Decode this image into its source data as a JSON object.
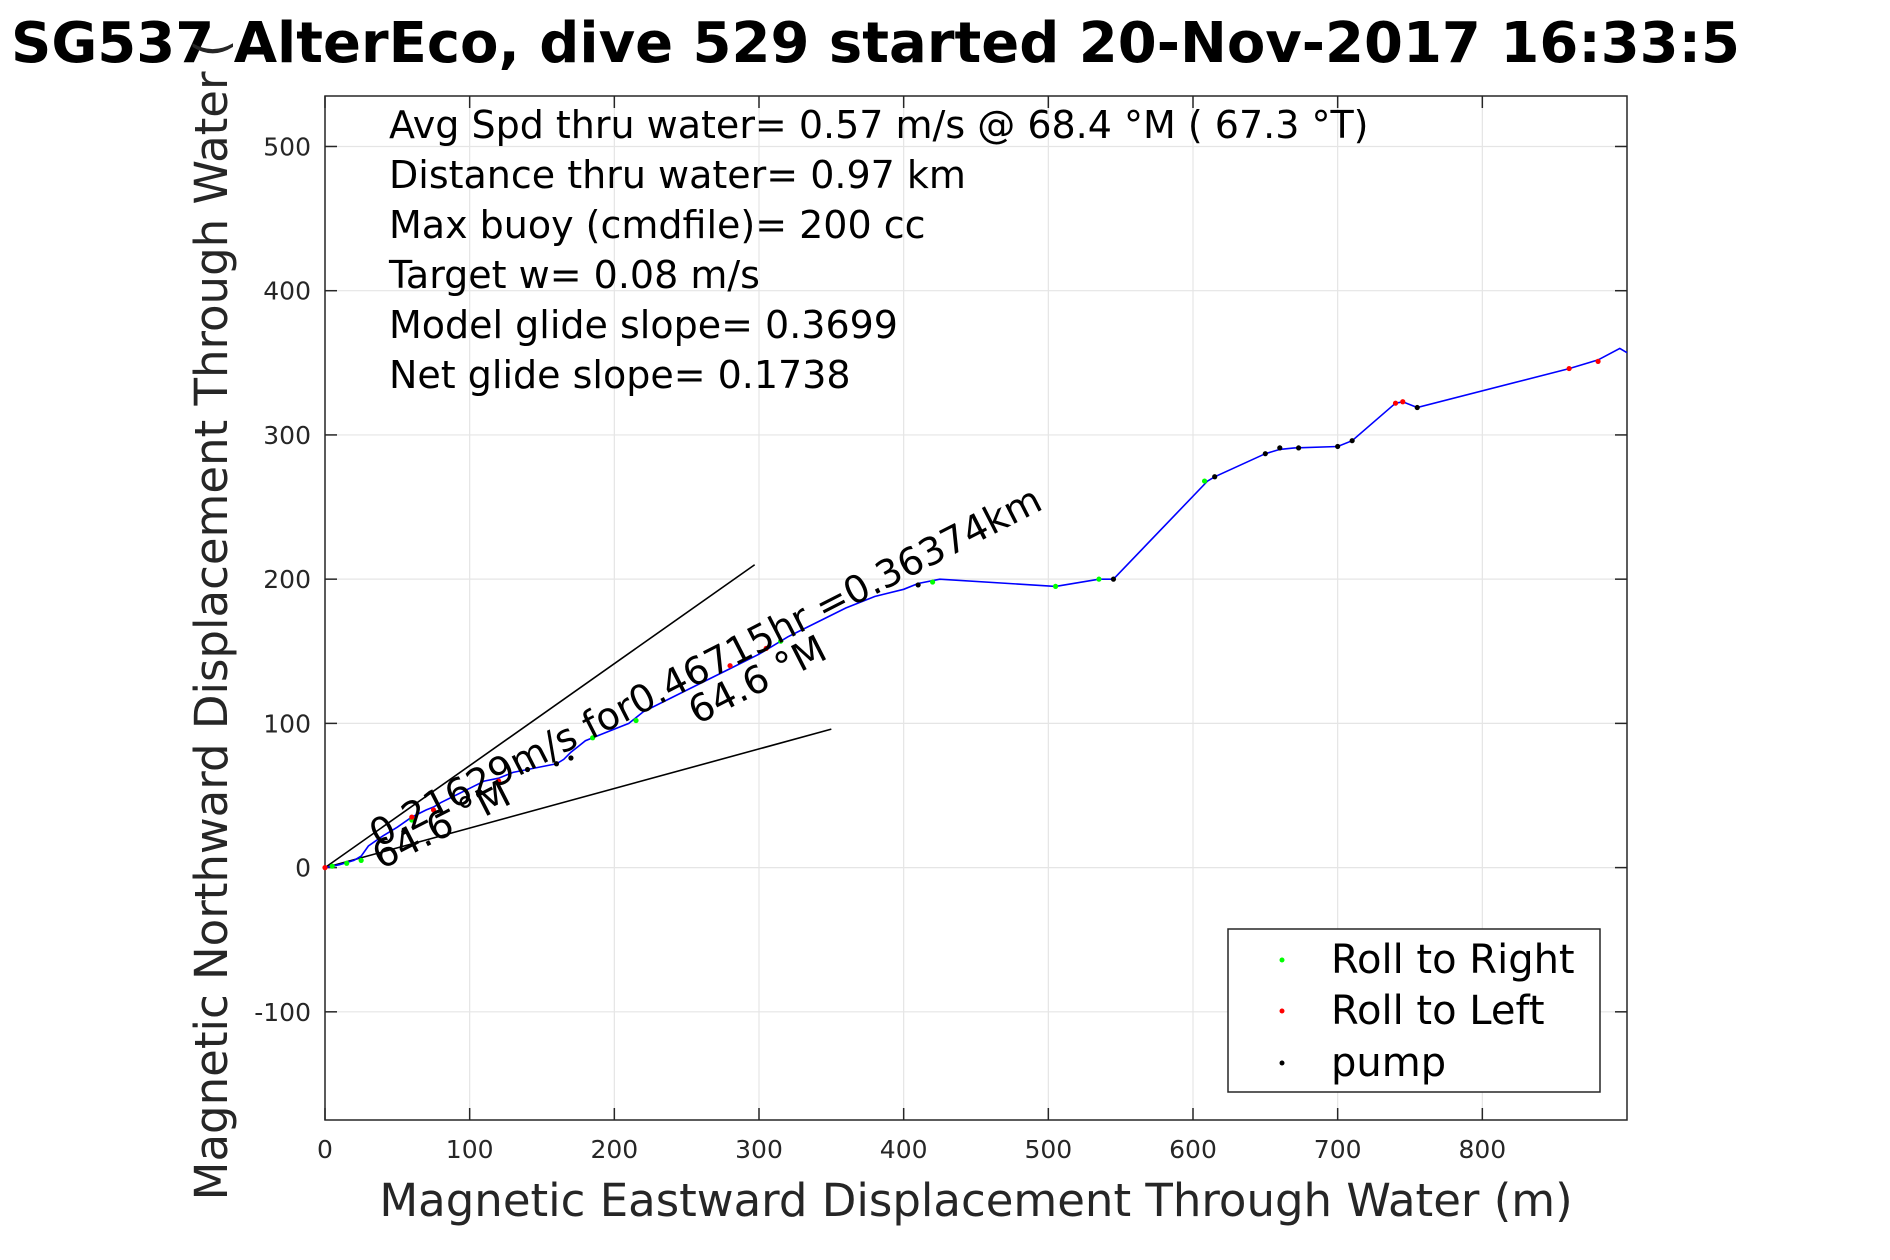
{
  "chart_data": {
    "type": "line",
    "title": "SG537 AlterEco, dive 529 started 20-Nov-2017 16:33:5",
    "xlabel": "Magnetic Eastward Displacement Through Water (m)",
    "ylabel": "Magnetic Northward Displacement Through Water (",
    "xlim": [
      0,
      900
    ],
    "ylim": [
      -175,
      535
    ],
    "xticks": [
      "0",
      "100",
      "200",
      "300",
      "400",
      "500",
      "600",
      "700",
      "800"
    ],
    "yticks": [
      "-100",
      "0",
      "100",
      "200",
      "300",
      "400",
      "500"
    ],
    "grid": true,
    "annotations": [
      "Avg Spd thru water=  0.57 m/s @  68.4 °M ( 67.3 °T)",
      "Distance thru water=  0.97 km",
      "Max buoy (cmdfile)= 200 cc",
      "Target w= 0.08 m/s",
      "Model glide slope= 0.3699",
      "Net glide slope= 0.1738"
    ],
    "current_label": "0.21629m/s for0.46715hr =0.36374km",
    "heading_label_1": "64.6 °M",
    "heading_label_2": "64.6 °M",
    "track": {
      "x": [
        0,
        10,
        20,
        25,
        30,
        40,
        50,
        60,
        70,
        75,
        80,
        90,
        100,
        110,
        120,
        130,
        140,
        150,
        160,
        165,
        170,
        175,
        180,
        190,
        200,
        210,
        220,
        240,
        260,
        280,
        300,
        320,
        340,
        360,
        380,
        400,
        410,
        425,
        505,
        535,
        545,
        610,
        615,
        650,
        660,
        670,
        700,
        710,
        740,
        745,
        755,
        860,
        880,
        895,
        900
      ],
      "y": [
        0,
        2,
        5,
        8,
        15,
        22,
        28,
        35,
        40,
        42,
        45,
        50,
        55,
        60,
        62,
        66,
        68,
        70,
        72,
        75,
        80,
        84,
        88,
        92,
        96,
        100,
        108,
        118,
        128,
        138,
        148,
        160,
        170,
        180,
        188,
        193,
        197,
        200,
        195,
        200,
        200,
        268,
        271,
        287,
        290,
        291,
        292,
        296,
        322,
        323,
        319,
        346,
        352,
        360,
        357
      ]
    },
    "series": [
      {
        "name": "Roll to Right",
        "color": "#00ff00",
        "x": [
          5,
          15,
          25,
          60,
          185,
          215,
          315,
          420,
          505,
          535,
          608
        ],
        "y": [
          1,
          3,
          5,
          33,
          90,
          102,
          157,
          198,
          195,
          200,
          268
        ]
      },
      {
        "name": "Roll to Left",
        "color": "#ff0000",
        "x": [
          0,
          60,
          75,
          120,
          280,
          305,
          740,
          745,
          860,
          880
        ],
        "y": [
          0,
          35,
          40,
          60,
          140,
          152,
          322,
          323,
          346,
          351
        ]
      },
      {
        "name": "pump",
        "color": "#000000",
        "x": [
          140,
          160,
          170,
          410,
          545,
          615,
          650,
          660,
          673,
          700,
          710,
          755
        ],
        "y": [
          68,
          72,
          76,
          196,
          200,
          271,
          287,
          291,
          291,
          292,
          296,
          319
        ]
      }
    ],
    "heading_lines": [
      {
        "x": [
          0,
          297
        ],
        "y": [
          0,
          210
        ]
      },
      {
        "x": [
          0,
          350
        ],
        "y": [
          0,
          96
        ]
      }
    ],
    "legend": {
      "position": "bottom-right",
      "entries": [
        "Roll to Right",
        "Roll to Left",
        "pump"
      ]
    },
    "colors": {
      "track": "#0000ff",
      "heading_line": "#000000",
      "grid": "#e5e5e5",
      "axis": "#262626"
    }
  }
}
